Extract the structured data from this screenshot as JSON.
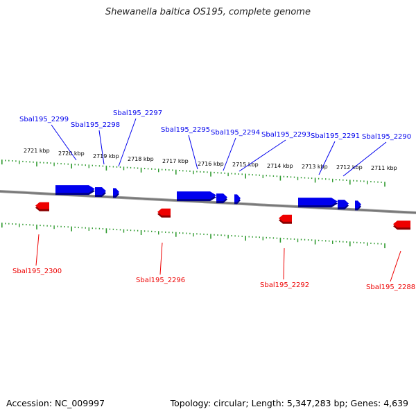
{
  "title": "Shewanella baltica OS195, complete genome",
  "footer": {
    "accession": "Accession: NC_009997",
    "summary": "Topology: circular; Length: 5,347,283 bp; Genes: 4,639"
  },
  "colors": {
    "forward": "#0000ee",
    "reverse": "#ee0000",
    "ticks": "#2e9a2e",
    "backbone": "#777777"
  },
  "chart_data": {
    "type": "genome-map",
    "view_range_kbp": [
      2711.5,
      2721.5
    ],
    "tick_labels_top": [
      "2721 kbp",
      "2720 kbp",
      "2719 kbp",
      "2718 kbp",
      "2717 kbp",
      "2716 kbp",
      "2715 kbp",
      "2714 kbp",
      "2713 kbp",
      "2712 kbp",
      "2711 kbp"
    ],
    "tick_positions_kbp": [
      2721,
      2720,
      2719,
      2718,
      2717,
      2716,
      2715,
      2714,
      2713,
      2712,
      2711
    ],
    "forward_genes": [
      {
        "label": "Sbal195_2299"
      },
      {
        "label": "Sbal195_2298"
      },
      {
        "label": "Sbal195_2297"
      },
      {
        "label": "Sbal195_2295"
      },
      {
        "label": "Sbal195_2294"
      },
      {
        "label": "Sbal195_2293"
      },
      {
        "label": "Sbal195_2291"
      },
      {
        "label": "Sbal195_2290"
      }
    ],
    "reverse_genes": [
      {
        "label": "Sbal195_2300"
      },
      {
        "label": "Sbal195_2296"
      },
      {
        "label": "Sbal195_2292"
      },
      {
        "label": "Sbal195_2288"
      }
    ]
  }
}
